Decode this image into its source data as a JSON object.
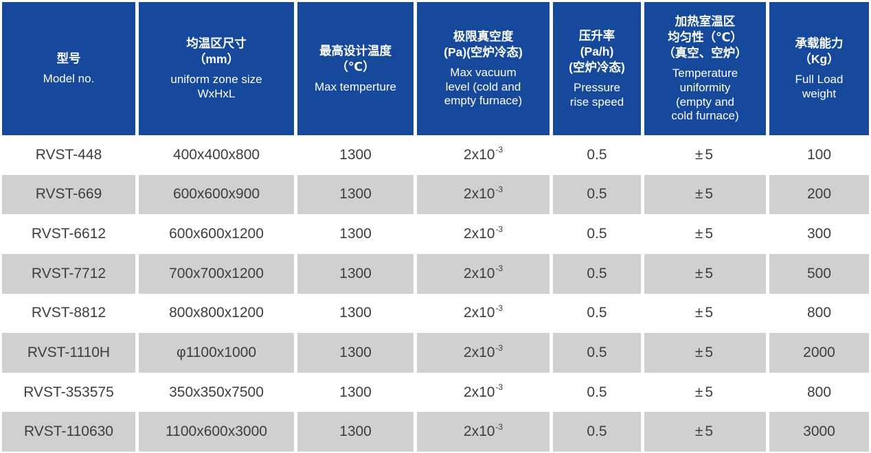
{
  "colors": {
    "header_bg": "#16499b",
    "header_text": "#ffffff",
    "row_bg": "#ffffff",
    "row_alt_bg": "#d0d0d0",
    "body_text": "#3d3d3d",
    "separator": "#ffffff"
  },
  "header": {
    "columns": [
      {
        "zh": "型号",
        "en": "Model no."
      },
      {
        "zh": "均温区尺寸\n（mm）",
        "en": "uniform zone size\nWxHxL"
      },
      {
        "zh": "最高设计温度\n（℃）",
        "en": "Max temperture"
      },
      {
        "zh": "极限真空度\n(Pa)(空炉冷态)",
        "en": "Max vacuum\nlevel (cold and\nempty furnace)"
      },
      {
        "zh": "压升率\n(Pa/h)\n(空炉冷态)",
        "en": "Pressure\nrise speed"
      },
      {
        "zh": "加热室温区\n均匀性（℃）\n（真空、空炉）",
        "en": "Temperature\nuniformity\n(empty and\ncold furnace)"
      },
      {
        "zh": "承载能力\n（Kg）",
        "en": "Full Load\nweight"
      }
    ]
  },
  "rows": [
    {
      "model": "RVST-448",
      "size": "400x400x800",
      "max_temp": "1300",
      "vacuum_base": "2x10",
      "vacuum_exp": "-3",
      "pressure_rise": "0.5",
      "uniformity": "±5",
      "load": "100"
    },
    {
      "model": "RVST-669",
      "size": "600x600x900",
      "max_temp": "1300",
      "vacuum_base": "2x10",
      "vacuum_exp": "-3",
      "pressure_rise": "0.5",
      "uniformity": "±5",
      "load": "200"
    },
    {
      "model": "RVST-6612",
      "size": "600x600x1200",
      "max_temp": "1300",
      "vacuum_base": "2x10",
      "vacuum_exp": "-3",
      "pressure_rise": "0.5",
      "uniformity": "±5",
      "load": "300"
    },
    {
      "model": "RVST-7712",
      "size": "700x700x1200",
      "max_temp": "1300",
      "vacuum_base": "2x10",
      "vacuum_exp": "-3",
      "pressure_rise": "0.5",
      "uniformity": "±5",
      "load": "500"
    },
    {
      "model": "RVST-8812",
      "size": "800x800x1200",
      "max_temp": "1300",
      "vacuum_base": "2x10",
      "vacuum_exp": "-3",
      "pressure_rise": "0.5",
      "uniformity": "±5",
      "load": "800"
    },
    {
      "model": "RVST-1110H",
      "size": "φ1100x1000",
      "max_temp": "1300",
      "vacuum_base": "2x10",
      "vacuum_exp": "-3",
      "pressure_rise": "0.5",
      "uniformity": "±5",
      "load": "2000"
    },
    {
      "model": "RVST-353575",
      "size": "350x350x7500",
      "max_temp": "1300",
      "vacuum_base": "2x10",
      "vacuum_exp": "-3",
      "pressure_rise": "0.5",
      "uniformity": "±5",
      "load": "800"
    },
    {
      "model": "RVST-110630",
      "size": "1100x600x3000",
      "max_temp": "1300",
      "vacuum_base": "2x10",
      "vacuum_exp": "-3",
      "pressure_rise": "0.5",
      "uniformity": "±5",
      "load": "3000"
    }
  ]
}
